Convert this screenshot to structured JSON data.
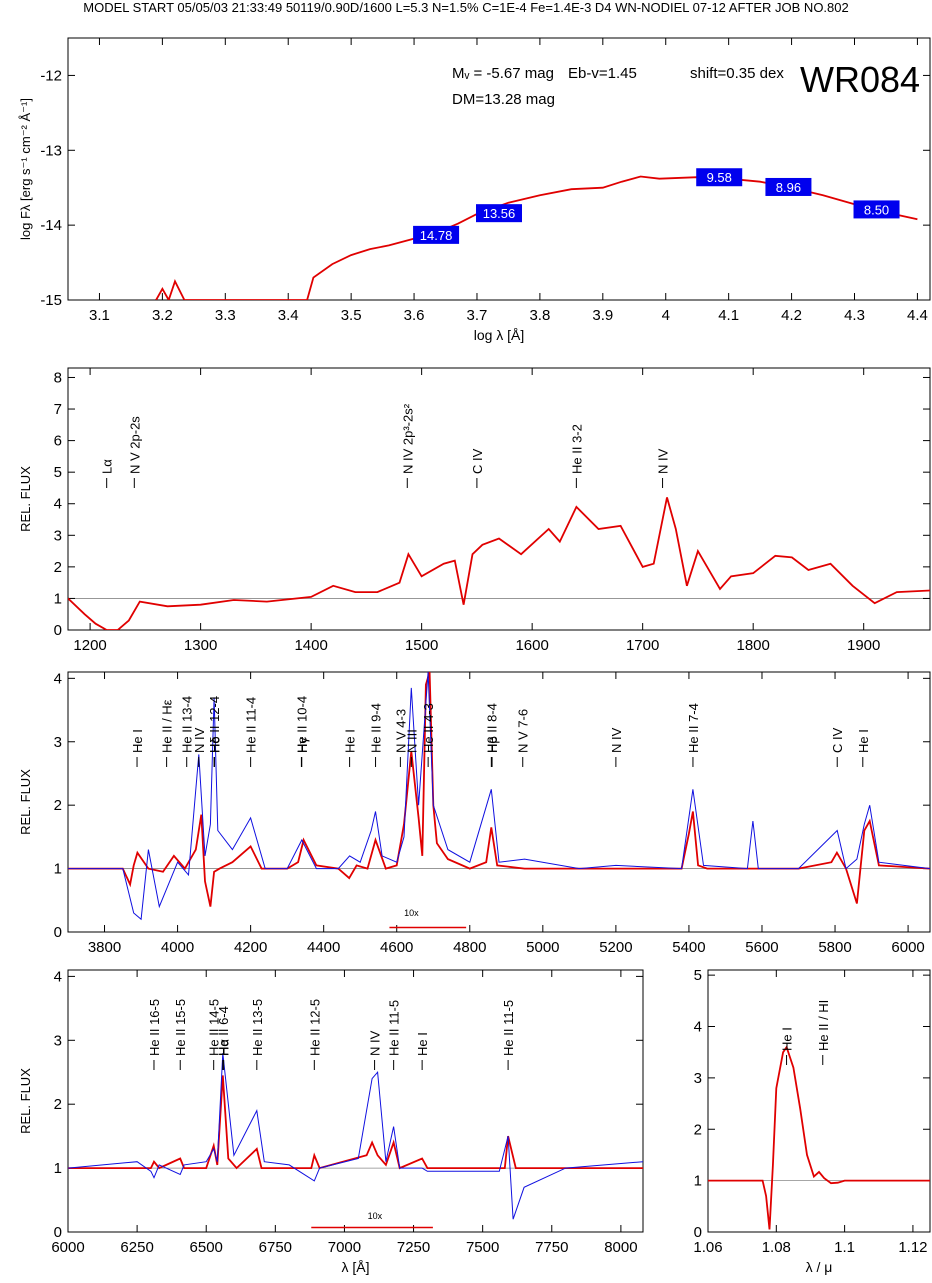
{
  "header": "MODEL START   05/05/03  21:33:49    50119/0.90D/1600 L=5.3 N=1.5% C=1E-4 Fe=1.4E-3 D4 WN-NODIEL 07-12     AFTER JOB NO.802",
  "colors": {
    "model": "#e00000",
    "observed": "#1010e0",
    "photometry_box": "#0000ee",
    "grid": "#888888"
  },
  "chart_data": [
    {
      "id": "sed",
      "type": "line",
      "xlabel": "log λ [Å]",
      "ylabel": "log Fλ [erg s⁻¹ cm⁻² Å⁻¹]",
      "xlim": [
        3.05,
        4.42
      ],
      "ylim": [
        -15.0,
        -11.5
      ],
      "xticks": [
        3.1,
        3.2,
        3.3,
        3.4,
        3.5,
        3.6,
        3.7,
        3.8,
        3.9,
        4.0,
        4.1,
        4.2,
        4.3,
        4.4
      ],
      "yticks": [
        -15,
        -14,
        -13,
        -12
      ],
      "annotations": {
        "mv": "Mᵥ = -5.67 mag",
        "ebv": "Eb-v=1.45",
        "shift": "shift=0.35 dex",
        "dm": "DM=13.28 mag",
        "star": "WR084"
      },
      "photometry": [
        {
          "x": 3.635,
          "y": -14.13,
          "label": "14.78"
        },
        {
          "x": 3.735,
          "y": -13.84,
          "label": "13.56"
        },
        {
          "x": 4.085,
          "y": -13.36,
          "label": "9.58"
        },
        {
          "x": 4.195,
          "y": -13.49,
          "label": "8.96"
        },
        {
          "x": 4.335,
          "y": -13.79,
          "label": "8.50"
        }
      ],
      "series": [
        {
          "x": [
            3.19,
            3.2,
            3.21,
            3.22,
            3.235,
            3.43,
            3.44,
            3.47,
            3.5,
            3.53,
            3.56,
            3.6,
            3.62,
            3.65,
            3.67,
            3.7,
            3.75,
            3.8,
            3.85,
            3.9,
            3.93,
            3.96,
            3.99,
            4.05,
            4.1,
            4.15,
            4.2,
            4.25,
            4.3,
            4.35,
            4.4
          ],
          "y": [
            -15.0,
            -14.85,
            -15.0,
            -14.75,
            -15.0,
            -15.0,
            -14.7,
            -14.52,
            -14.4,
            -14.32,
            -14.27,
            -14.18,
            -14.12,
            -14.05,
            -13.98,
            -13.85,
            -13.7,
            -13.6,
            -13.52,
            -13.5,
            -13.42,
            -13.35,
            -13.38,
            -13.36,
            -13.38,
            -13.42,
            -13.5,
            -13.6,
            -13.72,
            -13.83,
            -13.92
          ]
        }
      ]
    },
    {
      "id": "uv",
      "type": "line",
      "ylabel": "REL. FLUX",
      "xlim": [
        1180,
        1960
      ],
      "ylim": [
        0,
        8.3
      ],
      "xticks": [
        1200,
        1300,
        1400,
        1500,
        1600,
        1700,
        1800,
        1900
      ],
      "yticks": [
        0,
        1,
        2,
        3,
        4,
        5,
        6,
        7,
        8
      ],
      "lines": [
        {
          "x": 1215,
          "label": "Lα"
        },
        {
          "x": 1240,
          "label": "N V 2p-2s"
        },
        {
          "x": 1487,
          "label": "N IV 2p³-2s²"
        },
        {
          "x": 1550,
          "label": "C IV"
        },
        {
          "x": 1640,
          "label": "He II 3-2"
        },
        {
          "x": 1718,
          "label": "N IV"
        }
      ],
      "series": [
        {
          "x": [
            1180,
            1195,
            1205,
            1215,
            1225,
            1235,
            1245,
            1270,
            1300,
            1330,
            1360,
            1400,
            1420,
            1440,
            1460,
            1480,
            1488,
            1500,
            1520,
            1530,
            1538,
            1546,
            1555,
            1570,
            1590,
            1615,
            1625,
            1640,
            1660,
            1680,
            1700,
            1710,
            1722,
            1730,
            1740,
            1750,
            1770,
            1780,
            1800,
            1820,
            1835,
            1850,
            1870,
            1890,
            1910,
            1930,
            1960
          ],
          "y": [
            1.0,
            0.5,
            0.2,
            0.0,
            0.0,
            0.3,
            0.9,
            0.75,
            0.8,
            0.95,
            0.9,
            1.05,
            1.4,
            1.2,
            1.2,
            1.5,
            2.4,
            1.7,
            2.1,
            2.2,
            0.8,
            2.4,
            2.7,
            2.9,
            2.4,
            3.2,
            2.8,
            3.9,
            3.2,
            3.3,
            2.0,
            2.1,
            4.2,
            3.2,
            1.4,
            2.5,
            1.3,
            1.7,
            1.8,
            2.35,
            2.3,
            1.9,
            2.1,
            1.4,
            0.85,
            1.2,
            1.25
          ]
        }
      ]
    },
    {
      "id": "optical",
      "type": "line",
      "ylabel": "REL. FLUX",
      "xlim": [
        3700,
        6060
      ],
      "ylim": [
        0,
        4.1
      ],
      "xticks": [
        3800,
        4000,
        4200,
        4400,
        4600,
        4800,
        5000,
        5200,
        5400,
        5600,
        5800,
        6000
      ],
      "yticks": [
        0,
        1,
        2,
        3,
        4
      ],
      "inset_label": "10x",
      "lines": [
        {
          "x": 3889,
          "label": "He I"
        },
        {
          "x": 3970,
          "label": "He II / Hε"
        },
        {
          "x": 4025,
          "label": "He II 13-4"
        },
        {
          "x": 4058,
          "label": "N IV"
        },
        {
          "x": 4100,
          "label": "He II 12-4"
        },
        {
          "x": 4101,
          "label": "Hδ"
        },
        {
          "x": 4200,
          "label": "He II 11-4"
        },
        {
          "x": 4339,
          "label": "He II 10-4"
        },
        {
          "x": 4340,
          "label": "Hγ"
        },
        {
          "x": 4471,
          "label": "He I"
        },
        {
          "x": 4542,
          "label": "He II 9-4"
        },
        {
          "x": 4610,
          "label": "N V 4-3"
        },
        {
          "x": 4640,
          "label": "N III"
        },
        {
          "x": 4686,
          "label": "He II 4-3"
        },
        {
          "x": 4859,
          "label": "He II 8-4"
        },
        {
          "x": 4861,
          "label": "Hβ"
        },
        {
          "x": 4945,
          "label": "N V 7-6"
        },
        {
          "x": 5200,
          "label": "N IV"
        },
        {
          "x": 5411,
          "label": "He II 7-4"
        },
        {
          "x": 5806,
          "label": "C IV"
        },
        {
          "x": 5876,
          "label": "He I"
        }
      ],
      "series": [
        {
          "x": [
            3700,
            3850,
            3870,
            3880,
            3890,
            3920,
            3960,
            3990,
            4020,
            4050,
            4065,
            4075,
            4090,
            4100,
            4115,
            4150,
            4200,
            4230,
            4300,
            4330,
            4345,
            4380,
            4440,
            4470,
            4490,
            4520,
            4542,
            4570,
            4600,
            4620,
            4640,
            4660,
            4670,
            4680,
            4690,
            4700,
            4710,
            4740,
            4800,
            4845,
            4859,
            4875,
            4950,
            5100,
            5380,
            5400,
            5411,
            5425,
            5450,
            5700,
            5790,
            5805,
            5830,
            5860,
            5880,
            5895,
            5920,
            6060
          ],
          "y": [
            1.0,
            1.0,
            0.75,
            1.05,
            1.25,
            1.0,
            0.95,
            1.2,
            1.0,
            1.3,
            1.85,
            0.8,
            0.4,
            0.95,
            1.0,
            1.1,
            1.35,
            1.0,
            1.0,
            1.1,
            1.45,
            1.05,
            1.0,
            0.85,
            1.05,
            1.0,
            1.45,
            1.0,
            1.05,
            1.7,
            2.85,
            1.8,
            1.2,
            3.9,
            4.1,
            2.0,
            1.4,
            1.15,
            1.0,
            1.1,
            1.65,
            1.05,
            1.0,
            1.0,
            1.0,
            1.55,
            1.9,
            1.05,
            1.0,
            1.0,
            1.1,
            1.25,
            1.0,
            0.45,
            1.6,
            1.75,
            1.05,
            1.0
          ]
        },
        {
          "x": [
            3700,
            3850,
            3880,
            3900,
            3920,
            3950,
            4000,
            4030,
            4058,
            4075,
            4090,
            4100,
            4110,
            4150,
            4200,
            4240,
            4300,
            4340,
            4380,
            4440,
            4471,
            4500,
            4530,
            4542,
            4560,
            4600,
            4620,
            4640,
            4660,
            4686,
            4700,
            4740,
            4800,
            4859,
            4880,
            4950,
            5100,
            5200,
            5380,
            5411,
            5440,
            5560,
            5575,
            5590,
            5700,
            5806,
            5830,
            5860,
            5880,
            5895,
            5920,
            6060
          ],
          "y": [
            1.0,
            1.0,
            0.3,
            0.2,
            1.3,
            0.4,
            1.1,
            0.9,
            2.8,
            1.2,
            1.7,
            3.7,
            1.6,
            1.3,
            1.8,
            1.0,
            1.0,
            1.45,
            1.0,
            1.0,
            1.2,
            1.1,
            1.6,
            1.9,
            1.2,
            1.1,
            1.5,
            3.85,
            2.0,
            4.1,
            2.0,
            1.3,
            1.1,
            2.25,
            1.1,
            1.15,
            1.0,
            1.05,
            1.0,
            2.25,
            1.05,
            1.0,
            1.75,
            1.0,
            1.0,
            1.6,
            1.0,
            1.15,
            1.7,
            2.0,
            1.1,
            1.0
          ]
        }
      ]
    },
    {
      "id": "red",
      "type": "line",
      "ylabel": "REL. FLUX",
      "xlabel": "λ [Å]",
      "xlim": [
        6000,
        8080
      ],
      "ylim": [
        0,
        4.1
      ],
      "xticks": [
        6000,
        6250,
        6500,
        6750,
        7000,
        7250,
        7500,
        7750,
        8000
      ],
      "yticks": [
        0,
        1,
        2,
        3,
        4
      ],
      "inset_label": "10x",
      "lines": [
        {
          "x": 6311,
          "label": "He II 16-5"
        },
        {
          "x": 6406,
          "label": "He II 15-5"
        },
        {
          "x": 6527,
          "label": "He II 14-5"
        },
        {
          "x": 6560,
          "label": "He II 6-4"
        },
        {
          "x": 6563,
          "label": "Hα"
        },
        {
          "x": 6683,
          "label": "He II 13-5"
        },
        {
          "x": 6891,
          "label": "He II 12-5"
        },
        {
          "x": 7109,
          "label": "N IV"
        },
        {
          "x": 7178,
          "label": "He II 11-5"
        },
        {
          "x": 7281,
          "label": "He I"
        },
        {
          "x": 7592,
          "label": "He II 11-5"
        }
      ],
      "series": [
        {
          "x": [
            6000,
            6300,
            6311,
            6330,
            6406,
            6420,
            6500,
            6527,
            6540,
            6560,
            6580,
            6610,
            6683,
            6700,
            6880,
            6891,
            6910,
            7080,
            7100,
            7120,
            7150,
            7178,
            7200,
            7281,
            7300,
            7580,
            7592,
            7620,
            7700,
            8080
          ],
          "y": [
            1.0,
            1.0,
            1.1,
            1.0,
            1.15,
            1.0,
            1.0,
            1.35,
            1.05,
            2.45,
            1.15,
            1.0,
            1.3,
            1.0,
            1.0,
            1.2,
            1.0,
            1.2,
            1.4,
            1.2,
            1.05,
            1.4,
            1.0,
            1.15,
            1.0,
            1.0,
            1.5,
            1.0,
            1.0,
            1.0
          ]
        },
        {
          "x": [
            6000,
            6250,
            6300,
            6311,
            6330,
            6406,
            6420,
            6500,
            6527,
            6540,
            6560,
            6600,
            6683,
            6710,
            6800,
            6891,
            6910,
            7050,
            7100,
            7120,
            7150,
            7178,
            7200,
            7281,
            7300,
            7560,
            7592,
            7610,
            7650,
            7800,
            8080
          ],
          "y": [
            1.0,
            1.1,
            0.95,
            0.85,
            1.05,
            0.9,
            1.05,
            1.1,
            1.3,
            1.1,
            2.8,
            1.2,
            1.9,
            1.1,
            1.05,
            0.8,
            1.0,
            1.15,
            2.4,
            2.5,
            1.1,
            1.65,
            1.0,
            1.0,
            0.95,
            0.95,
            1.5,
            0.2,
            0.7,
            1.0,
            1.1
          ]
        }
      ]
    },
    {
      "id": "ir",
      "type": "line",
      "xlabel": "λ / μ",
      "xlim": [
        1.06,
        1.125
      ],
      "ylim": [
        0,
        5.1
      ],
      "xticks": [
        1.06,
        1.08,
        1.1,
        1.12
      ],
      "yticks": [
        0,
        1,
        2,
        3,
        4,
        5
      ],
      "lines": [
        {
          "x": 1.083,
          "label": "He I"
        },
        {
          "x": 1.0936,
          "label": "He II / HI"
        }
      ],
      "series": [
        {
          "x": [
            1.06,
            1.076,
            1.077,
            1.078,
            1.079,
            1.08,
            1.082,
            1.083,
            1.085,
            1.087,
            1.089,
            1.091,
            1.0925,
            1.094,
            1.096,
            1.098,
            1.1,
            1.125
          ],
          "y": [
            1.0,
            1.0,
            0.7,
            0.05,
            1.3,
            2.8,
            3.5,
            3.6,
            3.2,
            2.4,
            1.5,
            1.08,
            1.17,
            1.05,
            0.95,
            0.96,
            1.0,
            1.0
          ]
        }
      ]
    }
  ]
}
